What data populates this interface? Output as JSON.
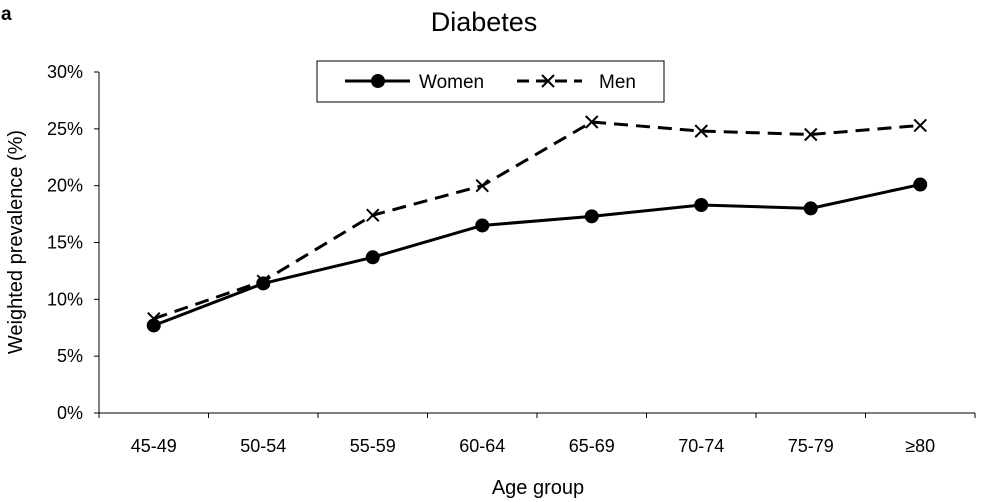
{
  "chart_data": {
    "type": "line",
    "panel_label": "a",
    "title": "Diabetes",
    "xlabel": "Age group",
    "ylabel": "Weighted prevalence (%)",
    "categories": [
      "45-49",
      "50-54",
      "55-59",
      "60-64",
      "65-69",
      "70-74",
      "75-79",
      "≥80"
    ],
    "ylim": [
      0,
      30
    ],
    "yticks": [
      0,
      5,
      10,
      15,
      20,
      25,
      30
    ],
    "ytick_labels": [
      "0%",
      "5%",
      "10%",
      "15%",
      "20%",
      "25%",
      "30%"
    ],
    "grid": false,
    "legend": "top-center",
    "series": [
      {
        "name": "Women",
        "marker": "circle",
        "line": "solid",
        "color": "#000000",
        "values": [
          7.7,
          11.4,
          13.7,
          16.5,
          17.3,
          18.3,
          18.0,
          20.1
        ]
      },
      {
        "name": "Men",
        "marker": "x",
        "line": "dashed",
        "color": "#000000",
        "values": [
          8.3,
          11.6,
          17.4,
          20.0,
          25.6,
          24.8,
          24.5,
          25.3
        ]
      }
    ]
  }
}
